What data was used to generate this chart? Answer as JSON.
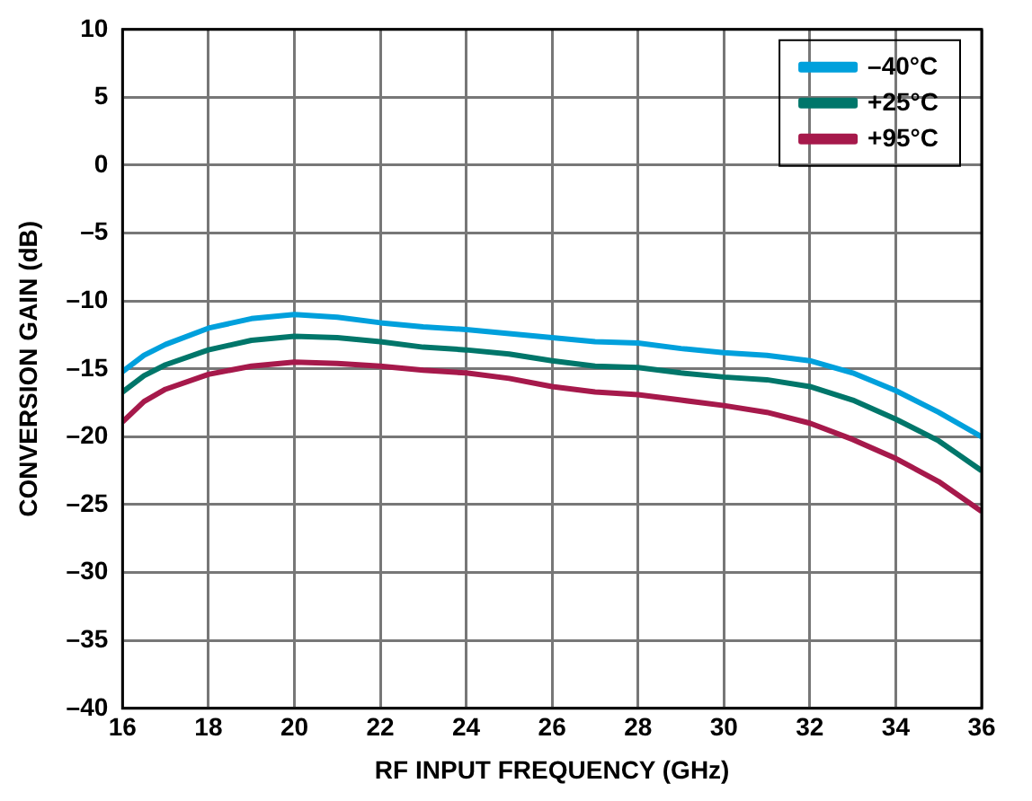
{
  "chart_data": {
    "type": "line",
    "xlabel": "RF INPUT FREQUENCY (GHz)",
    "ylabel": "CONVERSION GAIN (dB)",
    "x": [
      16,
      16.5,
      17,
      18,
      19,
      20,
      21,
      22,
      23,
      24,
      25,
      26,
      27,
      28,
      29,
      30,
      31,
      32,
      33,
      34,
      35,
      36
    ],
    "series": [
      {
        "name": "–40°C",
        "color": "#00a0dc",
        "values": [
          -15.2,
          -14,
          -13.2,
          -12,
          -11.3,
          -11,
          -11.2,
          -11.6,
          -11.9,
          -12.1,
          -12.4,
          -12.7,
          -13,
          -13.1,
          -13.5,
          -13.8,
          -14,
          -14.4,
          -15.3,
          -16.6,
          -18.2,
          -20
        ]
      },
      {
        "name": "+25°C",
        "color": "#00766a",
        "values": [
          -16.7,
          -15.5,
          -14.7,
          -13.6,
          -12.9,
          -12.6,
          -12.7,
          -13,
          -13.4,
          -13.6,
          -13.9,
          -14.4,
          -14.8,
          -14.9,
          -15.3,
          -15.6,
          -15.8,
          -16.3,
          -17.3,
          -18.7,
          -20.3,
          -22.5
        ]
      },
      {
        "name": "+95°C",
        "color": "#a6194b",
        "values": [
          -18.9,
          -17.4,
          -16.5,
          -15.4,
          -14.8,
          -14.5,
          -14.6,
          -14.8,
          -15.1,
          -15.3,
          -15.7,
          -16.3,
          -16.7,
          -16.9,
          -17.3,
          -17.7,
          -18.2,
          -19,
          -20.2,
          -21.6,
          -23.3,
          -25.5
        ]
      }
    ],
    "xlim": [
      16,
      36
    ],
    "xticks": [
      16,
      18,
      20,
      22,
      24,
      26,
      28,
      30,
      32,
      34,
      36
    ],
    "ylim": [
      -40,
      10
    ],
    "yticks": [
      {
        "value": -40,
        "label": "–40"
      },
      {
        "value": -35,
        "label": "–35"
      },
      {
        "value": -30,
        "label": "–30"
      },
      {
        "value": -25,
        "label": "–25"
      },
      {
        "value": -20,
        "label": "–20"
      },
      {
        "value": -15,
        "label": "–15"
      },
      {
        "value": -10,
        "label": "–10"
      },
      {
        "value": -5,
        "label": "–5"
      },
      0,
      5,
      10
    ],
    "grid": true,
    "legend": "top right",
    "marker": "none",
    "line_style": "solid"
  }
}
